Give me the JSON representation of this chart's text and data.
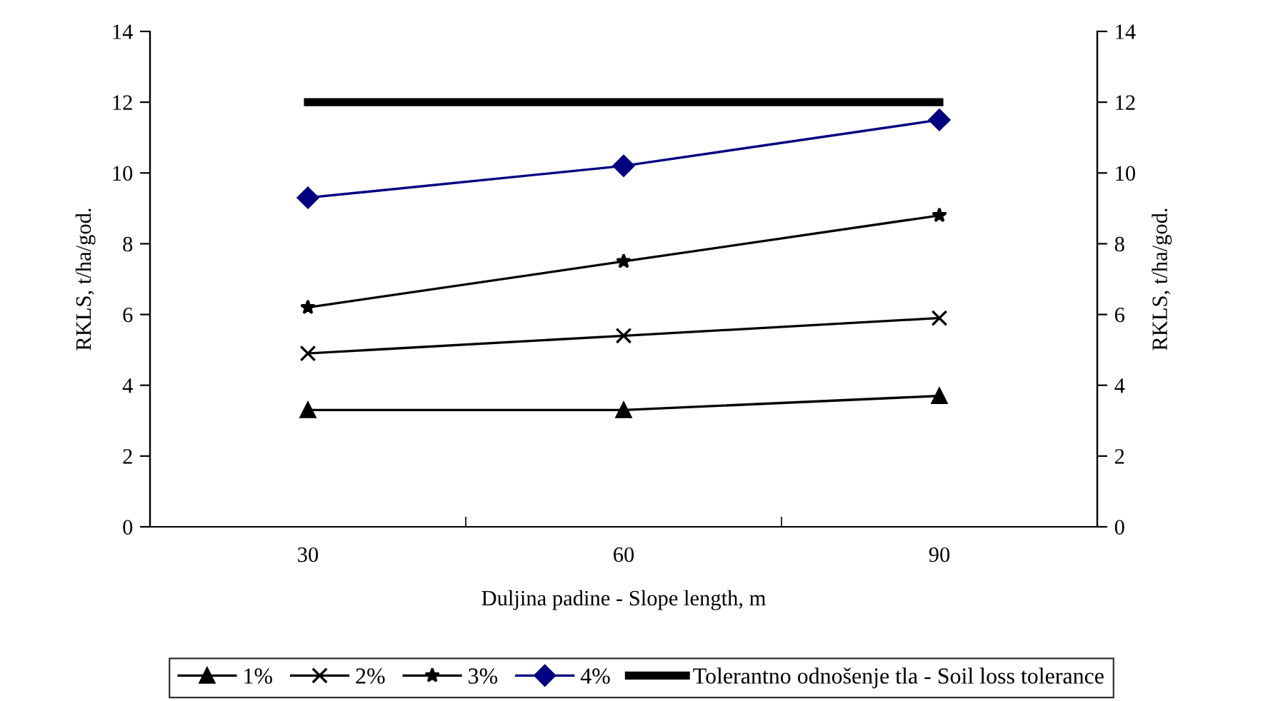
{
  "chart_data": {
    "type": "line",
    "xlabel": "Duljina padine - Slope length, m",
    "ylabel": "RKLS, t/ha/god.",
    "y2label": "RKLS, t/ha/god.",
    "categories": [
      "30",
      "60",
      "90"
    ],
    "series": [
      {
        "name": "1%",
        "color": "#000000",
        "marker": "triangle",
        "values": [
          3.3,
          3.3,
          3.7
        ]
      },
      {
        "name": "2%",
        "color": "#000000",
        "marker": "cross",
        "values": [
          4.9,
          5.4,
          5.9
        ]
      },
      {
        "name": "3%",
        "color": "#000000",
        "marker": "star",
        "values": [
          6.2,
          7.5,
          8.8
        ]
      },
      {
        "name": "4%",
        "color": "#000080",
        "marker": "diamond",
        "values": [
          9.3,
          10.2,
          11.5
        ]
      },
      {
        "name": "Tolerantno odnošenje tla - Soil loss tolerance",
        "color": "#000000",
        "marker": "none",
        "values": [
          12,
          12,
          12
        ]
      }
    ],
    "ylim": [
      0,
      14
    ],
    "yticks": [
      0,
      2,
      4,
      6,
      8,
      10,
      12,
      14
    ],
    "y2lim": [
      0,
      14
    ],
    "y2ticks": [
      0,
      2,
      4,
      6,
      8,
      10,
      12,
      14
    ],
    "grid": false,
    "legend": "bottom",
    "line_style": "solid"
  }
}
